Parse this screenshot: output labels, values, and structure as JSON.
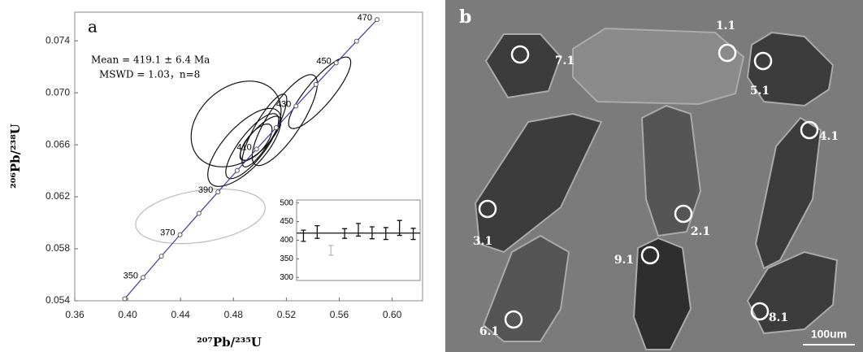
{
  "chart_data": [
    {
      "type": "concordia",
      "panel_label": "a",
      "x_label": "²⁰⁷Pb/²³⁵U",
      "y_label": "²⁰⁶Pb/²³⁸U",
      "xlim": [
        0.36,
        0.623
      ],
      "ylim": [
        0.054,
        0.0762
      ],
      "xticks": [
        0.36,
        {
          "value": 0.4,
          "label": "0.40"
        },
        0.44,
        0.48,
        0.52,
        0.56,
        {
          "value": 0.6,
          "label": "0.60"
        }
      ],
      "yticks": [
        0.054,
        0.058,
        0.062,
        0.066,
        {
          "value": 0.07,
          "label": "0.070"
        },
        0.074
      ],
      "annotations": [
        "Mean = 419.1 ± 6.4 Ma",
        "MSWD = 1.03，n=8"
      ],
      "concordia": {
        "color": "#3b3ba8",
        "x": [
          0.3978,
          0.4116,
          0.4255,
          0.4396,
          0.4539,
          0.4683,
          0.4828,
          0.4975,
          0.5123,
          0.5273,
          0.5424,
          0.5577,
          0.5731,
          0.5886
        ],
        "y": [
          0.05416,
          0.05579,
          0.05743,
          0.05908,
          0.06072,
          0.06237,
          0.06402,
          0.06567,
          0.06732,
          0.06898,
          0.07064,
          0.0723,
          0.07397,
          0.07563
        ],
        "labels": [
          null,
          "350",
          null,
          "370",
          null,
          "390",
          null,
          "410",
          null,
          "430",
          null,
          "450",
          null,
          "470"
        ]
      },
      "ellipses": [
        {
          "x": 0.455,
          "y": 0.0605,
          "sx": 0.049,
          "sy": 0.0021,
          "rho": 0.3,
          "color": "#bbbbbb"
        },
        {
          "x": 0.482,
          "y": 0.0676,
          "sx": 0.034,
          "sy": 0.0033,
          "rho": 0.3,
          "color": "#111111"
        },
        {
          "x": 0.5188,
          "y": 0.0679,
          "sx": 0.0246,
          "sy": 0.0035,
          "rho": 0.8,
          "color": "#111111"
        },
        {
          "x": 0.5452,
          "y": 0.07,
          "sx": 0.0235,
          "sy": 0.00275,
          "rho": 0.85,
          "color": "#111111"
        },
        {
          "x": 0.4942,
          "y": 0.0659,
          "sx": 0.02,
          "sy": 0.0025,
          "rho": 0.8,
          "color": "#111111"
        },
        {
          "x": 0.4883,
          "y": 0.0658,
          "sx": 0.0277,
          "sy": 0.003,
          "rho": 0.7,
          "color": "#111111"
        },
        {
          "x": 0.5003,
          "y": 0.0665,
          "sx": 0.0154,
          "sy": 0.0017,
          "rho": 0.8,
          "color": "#111111"
        },
        {
          "x": 0.5034,
          "y": 0.0671,
          "sx": 0.0169,
          "sy": 0.0028,
          "rho": 0.85,
          "color": "#111111"
        },
        {
          "x": 0.4972,
          "y": 0.0662,
          "sx": 0.012,
          "sy": 0.0014,
          "rho": 0.7,
          "color": "#111111"
        }
      ]
    },
    {
      "type": "errorbar",
      "ylim": [
        292,
        508
      ],
      "yticks": [
        300,
        350,
        400,
        450,
        500
      ],
      "values": [
        412,
        422,
        373,
        418,
        428,
        420,
        418,
        433,
        417
      ],
      "errors": [
        15,
        17,
        13,
        13,
        17,
        16,
        16,
        20,
        15
      ],
      "colors": [
        "#111111",
        "#111111",
        "#bbbbbb",
        "#111111",
        "#111111",
        "#111111",
        "#111111",
        "#111111",
        "#111111"
      ],
      "mean": 419.1
    }
  ],
  "image": {
    "panel_label": "b",
    "spots": [
      "7.1",
      "1.1",
      "5.1",
      "4.1",
      "2.1",
      "3.1",
      "9.1",
      "6.1",
      "8.1"
    ],
    "scale_bar": "100um"
  }
}
